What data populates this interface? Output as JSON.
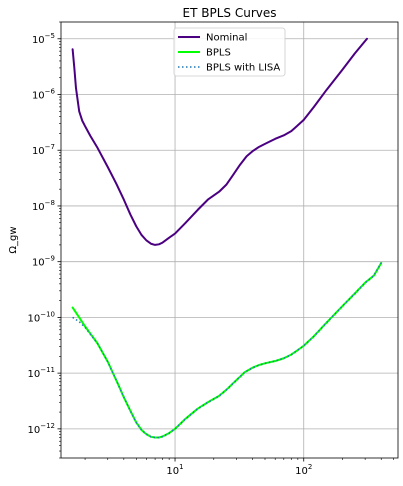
{
  "chart_data": {
    "type": "line",
    "title": "ET BPLS Curves",
    "xlabel": "",
    "ylabel": "Ω_gw",
    "xscale": "log",
    "yscale": "log",
    "xlim": [
      1.3,
      540
    ],
    "ylim": [
      3e-13,
      2e-05
    ],
    "grid": true,
    "legend_position": "top-center",
    "x_ticks": [
      {
        "value": 10,
        "base": "10",
        "exp": "1"
      },
      {
        "value": 100,
        "base": "10",
        "exp": "2"
      }
    ],
    "y_ticks": [
      {
        "value": 1e-12,
        "base": "10",
        "exp": "−12"
      },
      {
        "value": 1e-11,
        "base": "10",
        "exp": "−11"
      },
      {
        "value": 1e-10,
        "base": "10",
        "exp": "−10"
      },
      {
        "value": 1e-09,
        "base": "10",
        "exp": "−9"
      },
      {
        "value": 1e-08,
        "base": "10",
        "exp": "−8"
      },
      {
        "value": 1e-07,
        "base": "10",
        "exp": "−7"
      },
      {
        "value": 1e-06,
        "base": "10",
        "exp": "−6"
      },
      {
        "value": 1e-05,
        "base": "10",
        "exp": "−5"
      }
    ],
    "series": [
      {
        "name": "Nominal",
        "color": "#4b0082",
        "style": "solid",
        "x": [
          1.6,
          1.65,
          1.7,
          1.8,
          1.9,
          2.0,
          2.2,
          2.5,
          3.0,
          3.5,
          4.0,
          4.5,
          5.0,
          5.5,
          6.0,
          6.5,
          7.0,
          7.5,
          8.0,
          9.0,
          10,
          12,
          15,
          18,
          22,
          25,
          28,
          32,
          36,
          40,
          45,
          50,
          55,
          60,
          70,
          80,
          90,
          100,
          120,
          150,
          200,
          250,
          310
        ],
        "y": [
          6.5e-06,
          3e-06,
          1.3e-06,
          5e-07,
          3.4e-07,
          2.7e-07,
          1.8e-07,
          1.1e-07,
          5e-08,
          2.5e-08,
          1.3e-08,
          7e-09,
          4.3e-09,
          3e-09,
          2.4e-09,
          2.1e-09,
          2e-09,
          2.05e-09,
          2.2e-09,
          2.7e-09,
          3.2e-09,
          4.9e-09,
          8.5e-09,
          1.3e-08,
          1.8e-08,
          2.4e-08,
          3.5e-08,
          5.5e-08,
          7.8e-08,
          9.6e-08,
          1.15e-07,
          1.3e-07,
          1.45e-07,
          1.6e-07,
          1.85e-07,
          2.2e-07,
          2.8e-07,
          3.5e-07,
          6e-07,
          1.2e-06,
          2.8e-06,
          5.5e-06,
          1e-05
        ]
      },
      {
        "name": "BPLS",
        "color": "#00ff00",
        "style": "solid",
        "x": [
          1.6,
          1.8,
          2.0,
          2.5,
          3.0,
          3.5,
          4.0,
          4.5,
          5.0,
          5.5,
          6.0,
          6.5,
          7.0,
          7.5,
          8.0,
          9.0,
          10,
          12,
          15,
          18,
          22,
          25,
          30,
          35,
          40,
          45,
          50,
          60,
          70,
          80,
          90,
          100,
          120,
          150,
          200,
          250,
          300,
          350,
          400
        ],
        "y": [
          1.5e-10,
          1e-10,
          6.9e-11,
          3.4e-11,
          1.6e-11,
          7.4e-12,
          3.7e-12,
          2.1e-12,
          1.3e-12,
          9.5e-13,
          8e-13,
          7.2e-13,
          7e-13,
          7e-13,
          7.3e-13,
          8.4e-13,
          1e-12,
          1.5e-12,
          2.3e-12,
          3e-12,
          3.9e-12,
          5e-12,
          7.5e-12,
          1.05e-11,
          1.25e-11,
          1.4e-11,
          1.5e-11,
          1.65e-11,
          1.85e-11,
          2.15e-11,
          2.6e-11,
          3.1e-11,
          4.6e-11,
          8e-11,
          1.6e-10,
          2.7e-10,
          4.2e-10,
          5.6e-10,
          9.5e-10
        ]
      },
      {
        "name": "BPLS with LISA",
        "color": "#1f77b4",
        "style": "dotted",
        "x": [
          1.6,
          1.8,
          2.0,
          2.5,
          3.0,
          3.5,
          4.0,
          4.5,
          5.0,
          5.5,
          6.0,
          6.5,
          7.0,
          7.5,
          8.0,
          9.0,
          10,
          12,
          15,
          18,
          22,
          25,
          30,
          35,
          40,
          45,
          50,
          60,
          70,
          80,
          90,
          100,
          120,
          150,
          200,
          250,
          300,
          350,
          400
        ],
        "y": [
          1e-10,
          8.4e-11,
          6.6e-11,
          3.4e-11,
          1.6e-11,
          7.4e-12,
          3.7e-12,
          2.1e-12,
          1.3e-12,
          9.5e-13,
          8e-13,
          7.2e-13,
          7e-13,
          7e-13,
          7.3e-13,
          8.4e-13,
          1e-12,
          1.5e-12,
          2.3e-12,
          3e-12,
          3.9e-12,
          5e-12,
          7.5e-12,
          1.05e-11,
          1.25e-11,
          1.4e-11,
          1.5e-11,
          1.65e-11,
          1.85e-11,
          2.15e-11,
          2.6e-11,
          3.1e-11,
          4.6e-11,
          8e-11,
          1.6e-10,
          2.7e-10,
          4.2e-10,
          5.6e-10,
          9.5e-10
        ]
      }
    ]
  }
}
